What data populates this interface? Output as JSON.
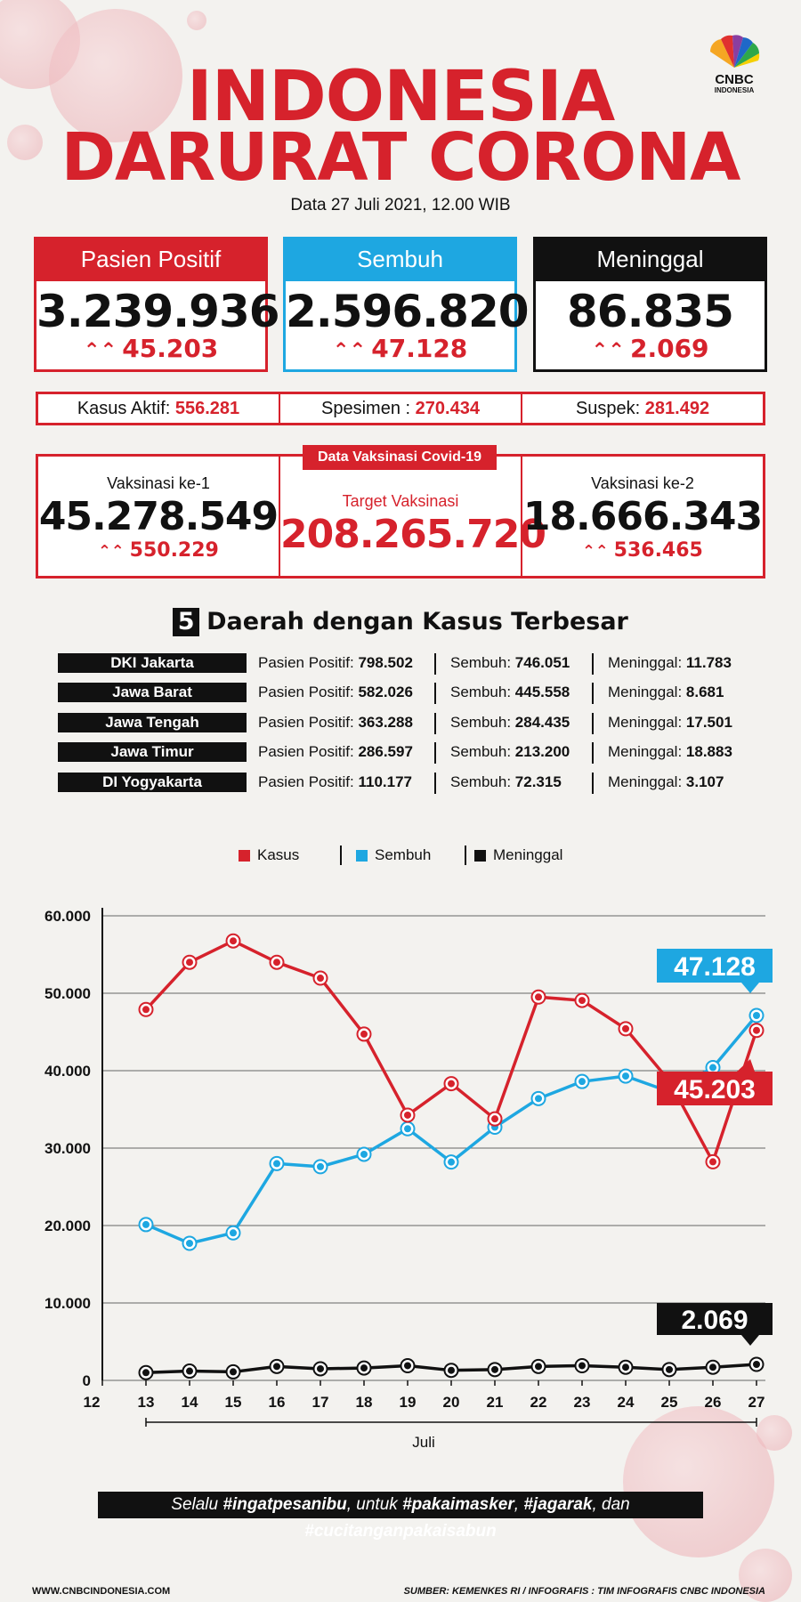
{
  "header": {
    "title_line1": "INDONESIA",
    "title_line2": "DARURAT CORONA",
    "date": "Data 27 Juli 2021, 12.00 WIB",
    "logo_text": "CNBC",
    "logo_sub": "INDONESIA"
  },
  "cards": [
    {
      "label": "Pasien Positif",
      "value": "3.239.936",
      "delta": "45.203",
      "color": "#d6222c"
    },
    {
      "label": "Sembuh",
      "value": "2.596.820",
      "delta": "47.128",
      "color": "#1ea7e1"
    },
    {
      "label": "Meninggal",
      "value": "86.835",
      "delta": "2.069",
      "color": "#111111"
    }
  ],
  "stats": {
    "aktif_label": "Kasus Aktif:",
    "aktif_value": "556.281",
    "spesimen_label": "Spesimen :",
    "spesimen_value": "270.434",
    "suspek_label": "Suspek:",
    "suspek_value": "281.492"
  },
  "vaksin": {
    "tag": "Data Vaksinasi Covid-19",
    "dose1_label": "Vaksinasi ke-1",
    "dose1_value": "45.278.549",
    "dose1_delta": "550.229",
    "target_label": "Target Vaksinasi",
    "target_value": "208.265.720",
    "dose2_label": "Vaksinasi ke-2",
    "dose2_value": "18.666.343",
    "dose2_delta": "536.465"
  },
  "regions": {
    "number": "5",
    "title": "Daerah dengan Kasus Terbesar",
    "positif_label": "Pasien Positif:",
    "sembuh_label": "Sembuh:",
    "meninggal_label": "Meninggal:",
    "rows": [
      {
        "name": "DKI Jakarta",
        "positif": "798.502",
        "sembuh": "746.051",
        "meninggal": "11.783"
      },
      {
        "name": "Jawa Barat",
        "positif": "582.026",
        "sembuh": "445.558",
        "meninggal": "8.681"
      },
      {
        "name": "Jawa Tengah",
        "positif": "363.288",
        "sembuh": "284.435",
        "meninggal": "17.501"
      },
      {
        "name": "Jawa Timur",
        "positif": "286.597",
        "sembuh": "213.200",
        "meninggal": "18.883"
      },
      {
        "name": "DI Yogyakarta",
        "positif": "110.177",
        "sembuh": "72.315",
        "meninggal": "3.107"
      }
    ]
  },
  "chart_data": {
    "type": "line",
    "xlabel": "Juli",
    "x": [
      13,
      14,
      15,
      16,
      17,
      18,
      19,
      20,
      21,
      22,
      23,
      24,
      25,
      26,
      27
    ],
    "x_ticks": [
      12,
      13,
      14,
      15,
      16,
      17,
      18,
      19,
      20,
      21,
      22,
      23,
      24,
      25,
      26,
      27
    ],
    "ylim": [
      0,
      60000
    ],
    "y_ticks": [
      "0",
      "10.000",
      "20.000",
      "30.000",
      "40.000",
      "50.000",
      "60.000"
    ],
    "y_tick_values": [
      0,
      10000,
      20000,
      30000,
      40000,
      50000,
      60000
    ],
    "grid": true,
    "legend_position": "top",
    "series": [
      {
        "name": "Kasus",
        "color": "#d6222c",
        "values": [
          47899,
          54000,
          56757,
          54000,
          51952,
          44721,
          34257,
          38325,
          33772,
          49509,
          49071,
          45416,
          38679,
          28228,
          45203
        ],
        "callout": "45.203"
      },
      {
        "name": "Sembuh",
        "color": "#1ea7e1",
        "values": [
          20123,
          17702,
          19049,
          28000,
          27600,
          29200,
          32500,
          28200,
          32700,
          36400,
          38600,
          39300,
          37300,
          40400,
          47128
        ],
        "callout": "47.128"
      },
      {
        "name": "Meninggal",
        "color": "#111111",
        "values": [
          1000,
          1200,
          1100,
          1800,
          1500,
          1600,
          1900,
          1300,
          1400,
          1800,
          1900,
          1700,
          1400,
          1700,
          2069
        ],
        "callout": "2.069"
      }
    ]
  },
  "footer": {
    "hashtag_pre": "Selalu ",
    "tag1": "#ingatpesanibu",
    "mid1": ", untuk ",
    "tag2": "#pakaimasker",
    "mid2": ", ",
    "tag3": "#jagarak",
    "mid3": ", dan ",
    "tag4": "#cucitanganpakaisabun",
    "website": "WWW.CNBCINDONESIA.COM",
    "source": "SUMBER: KEMENKES RI / INFOGRAFIS : TIM INFOGRAFIS CNBC INDONESIA"
  }
}
